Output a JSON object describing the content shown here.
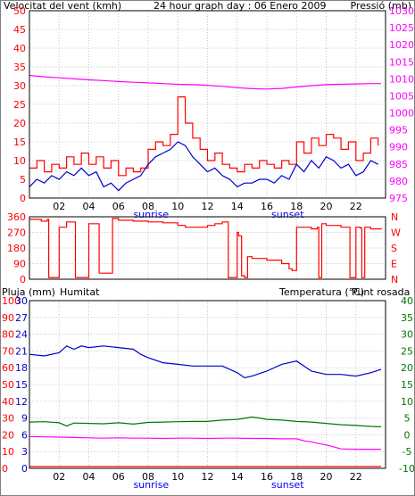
{
  "colors": {
    "background": "#ffffff",
    "frame": "#000000",
    "grid": "#c8c8c8",
    "wind": "#ff0000",
    "pressure": "#ff00ff",
    "direction": "#ff0000",
    "rain": "#ff0000",
    "humidity": "#0000c8",
    "temperature": "#007800",
    "dewpoint": "#ff00ff",
    "daylight": "#0000ff"
  },
  "chart_data": [
    {
      "type": "line",
      "title": "24 hour graph day : 06 Enero 2009",
      "left_axis_label": "Velocitat del vent (kmh)",
      "right_axis_label": "Pressió (mb)",
      "x_ticks": [
        "02",
        "04",
        "06",
        "08",
        "10",
        "12",
        "14",
        "16",
        "18",
        "20",
        "22"
      ],
      "x_tick_hours": [
        2,
        4,
        6,
        8,
        10,
        12,
        14,
        16,
        18,
        20,
        22
      ],
      "x_range": [
        0,
        24
      ],
      "left_ylim": [
        0,
        50
      ],
      "left_ticks": [
        "0",
        "5",
        "10",
        "15",
        "20",
        "25",
        "30",
        "35",
        "40",
        "45",
        "50"
      ],
      "left_tick_values": [
        0,
        5,
        10,
        15,
        20,
        25,
        30,
        35,
        40,
        45,
        50
      ],
      "right_ylim": [
        975,
        1030
      ],
      "right_ticks": [
        "975",
        "980",
        "985",
        "990",
        "995",
        "1000",
        "1005",
        "1010",
        "1015",
        "1020",
        "1025",
        "1030"
      ],
      "right_tick_values": [
        975,
        980,
        985,
        990,
        995,
        1000,
        1005,
        1010,
        1015,
        1020,
        1025,
        1030
      ],
      "sunrise_label": "sunrise",
      "sunset_label": "sunset",
      "sunrise_hour": 8.2,
      "sunset_hour": 17.4,
      "series": [
        {
          "key": "gust",
          "axis": "left",
          "color_key": "wind",
          "x": [
            0,
            0.5,
            1,
            1.5,
            2,
            2.5,
            3,
            3.5,
            4,
            4.5,
            5,
            5.5,
            6,
            6.5,
            7,
            7.5,
            8,
            8.5,
            9,
            9.5,
            10,
            10.5,
            11,
            11.5,
            12,
            12.5,
            13,
            13.5,
            14,
            14.5,
            15,
            15.5,
            16,
            16.5,
            17,
            17.5,
            18,
            18.5,
            19,
            19.5,
            20,
            20.5,
            21,
            21.5,
            22,
            22.5,
            23,
            23.5
          ],
          "y": [
            8,
            10,
            7,
            9,
            8,
            11,
            9,
            12,
            9,
            11,
            8,
            10,
            6,
            8,
            7,
            8,
            13,
            15,
            14,
            17,
            27,
            20,
            16,
            13,
            10,
            12,
            9,
            8,
            7,
            9,
            8,
            10,
            9,
            8,
            10,
            9,
            15,
            12,
            16,
            14,
            17,
            16,
            13,
            15,
            10,
            12,
            16,
            14
          ]
        },
        {
          "key": "wind",
          "axis": "left",
          "color_key": "humidity",
          "x": [
            0,
            0.5,
            1,
            1.5,
            2,
            2.5,
            3,
            3.5,
            4,
            4.5,
            5,
            5.5,
            6,
            6.5,
            7,
            7.5,
            8,
            8.5,
            9,
            9.5,
            10,
            10.5,
            11,
            11.5,
            12,
            12.5,
            13,
            13.5,
            14,
            14.5,
            15,
            15.5,
            16,
            16.5,
            17,
            17.5,
            18,
            18.5,
            19,
            19.5,
            20,
            20.5,
            21,
            21.5,
            22,
            22.5,
            23,
            23.5
          ],
          "y": [
            3,
            5,
            4,
            6,
            5,
            7,
            6,
            8,
            6,
            7,
            3,
            4,
            2,
            4,
            5,
            6,
            9,
            11,
            12,
            13,
            15,
            14,
            11,
            9,
            7,
            8,
            6,
            5,
            3,
            4,
            4,
            5,
            5,
            4,
            6,
            5,
            9,
            7,
            10,
            8,
            11,
            10,
            8,
            9,
            6,
            7,
            10,
            9
          ]
        },
        {
          "key": "pressure",
          "axis": "right",
          "color_key": "pressure",
          "x": [
            0,
            1,
            2,
            3,
            4,
            5,
            6,
            7,
            8,
            9,
            10,
            11,
            12,
            13,
            14,
            15,
            16,
            17,
            18,
            19,
            20,
            21,
            22,
            23,
            23.7
          ],
          "y": [
            1011,
            1010.6,
            1010.3,
            1010,
            1009.7,
            1009.5,
            1009.2,
            1009,
            1008.8,
            1008.6,
            1008.4,
            1008.3,
            1008.1,
            1007.8,
            1007.4,
            1007.1,
            1007.0,
            1007.2,
            1007.6,
            1008.0,
            1008.3,
            1008.4,
            1008.5,
            1008.6,
            1008.6
          ]
        }
      ]
    },
    {
      "type": "line",
      "left_ticks": [
        "0",
        "90",
        "180",
        "270",
        "360"
      ],
      "left_tick_values": [
        0,
        90,
        180,
        270,
        360
      ],
      "right_ticks": [
        "N",
        "E",
        "S",
        "W",
        "N"
      ],
      "ylim": [
        0,
        360
      ],
      "series": [
        {
          "key": "direction",
          "color_key": "direction",
          "x": [
            0,
            0.8,
            1.2,
            1.3,
            1.9,
            2.0,
            2.4,
            2.5,
            3.0,
            3.1,
            3.9,
            4.0,
            4.6,
            4.7,
            5.6,
            6.0,
            7,
            8,
            9,
            10,
            10.5,
            11,
            12,
            12.5,
            13,
            13.2,
            13.4,
            13.5,
            14.0,
            14.1,
            14.3,
            14.5,
            14.7,
            15,
            16,
            17,
            17.5,
            17.7,
            18,
            19,
            19.4,
            19.5,
            19.6,
            19.7,
            20,
            21,
            21.5,
            21.6,
            21.7,
            22,
            22.3,
            22.4,
            22.6,
            23,
            23.7
          ],
          "y": [
            345,
            335,
            345,
            10,
            10,
            300,
            300,
            330,
            330,
            10,
            10,
            320,
            320,
            35,
            350,
            340,
            335,
            330,
            325,
            310,
            300,
            300,
            310,
            320,
            330,
            330,
            10,
            10,
            270,
            250,
            20,
            10,
            130,
            120,
            110,
            90,
            60,
            50,
            300,
            290,
            300,
            10,
            10,
            320,
            310,
            300,
            300,
            10,
            10,
            300,
            295,
            10,
            300,
            290,
            295
          ]
        }
      ]
    },
    {
      "type": "line",
      "legend": [
        "Pluja (mm)",
        "Humitat",
        "Temperatura (°C)",
        "Punt rosada"
      ],
      "rain_ticks": [
        "0",
        "10",
        "20",
        "30",
        "40",
        "50",
        "60",
        "70",
        "80",
        "90",
        "100"
      ],
      "rain_tick_values": [
        0,
        10,
        20,
        30,
        40,
        50,
        60,
        70,
        80,
        90,
        100
      ],
      "humidity_ticks": [
        "0",
        "3",
        "6",
        "9",
        "12",
        "15",
        "18",
        "21",
        "24",
        "27",
        "30"
      ],
      "humidity_tick_values": [
        0,
        3,
        6,
        9,
        12,
        15,
        18,
        21,
        24,
        27,
        30
      ],
      "temp_ylim": [
        -10,
        40
      ],
      "temp_ticks": [
        "-10",
        "-5",
        "0",
        "5",
        "10",
        "15",
        "20",
        "25",
        "30",
        "35",
        "40"
      ],
      "temp_tick_values": [
        -10,
        -5,
        0,
        5,
        10,
        15,
        20,
        25,
        30,
        35,
        40
      ],
      "x_ticks": [
        "02",
        "04",
        "06",
        "08",
        "10",
        "12",
        "14",
        "16",
        "18",
        "20",
        "22"
      ],
      "sunrise_label": "sunrise",
      "sunset_label": "sunset",
      "series": [
        {
          "key": "humidity",
          "axis": "left",
          "color_key": "humidity",
          "x": [
            0,
            1,
            2,
            2.5,
            3,
            3.5,
            4,
            5,
            6,
            7,
            7.5,
            8,
            9,
            10,
            11,
            12,
            13,
            14,
            14.5,
            15,
            16,
            17,
            18,
            19,
            20,
            21,
            22,
            23,
            23.7
          ],
          "y": [
            68,
            67,
            69,
            73,
            71,
            73,
            72,
            73,
            72,
            71,
            68,
            66,
            63,
            62,
            61,
            61,
            61,
            57,
            54,
            55,
            58,
            62,
            64,
            58,
            56,
            56,
            55,
            57,
            59
          ]
        },
        {
          "key": "temperature",
          "axis": "right",
          "color_key": "temperature",
          "x": [
            0,
            1,
            2,
            2.5,
            3,
            4,
            5,
            6,
            7,
            8,
            9,
            10,
            11,
            12,
            13,
            14,
            15,
            15.5,
            16,
            17,
            18,
            19,
            20,
            21,
            22,
            23,
            23.7
          ],
          "y": [
            3.8,
            3.9,
            3.6,
            2.6,
            3.5,
            3.4,
            3.3,
            3.6,
            3.2,
            3.7,
            3.8,
            3.9,
            4.0,
            4.0,
            4.4,
            4.6,
            5.3,
            5.0,
            4.6,
            4.4,
            4.0,
            3.8,
            3.4,
            3.0,
            2.8,
            2.5,
            2.4
          ]
        },
        {
          "key": "dewpoint",
          "axis": "right",
          "color_key": "dewpoint",
          "x": [
            0,
            1,
            2,
            3,
            4,
            5,
            6,
            7,
            8,
            9,
            10,
            11,
            12,
            13,
            14,
            15,
            16,
            17,
            18,
            18.5,
            19,
            19.5,
            20,
            20.5,
            21,
            22,
            23,
            23.7
          ],
          "y": [
            -0.5,
            -0.6,
            -0.7,
            -0.8,
            -0.9,
            -1.0,
            -0.9,
            -1.0,
            -1.0,
            -1.1,
            -1.0,
            -1.0,
            -1.1,
            -1.0,
            -1.0,
            -1.1,
            -1.1,
            -1.2,
            -1.2,
            -1.8,
            -2.1,
            -2.6,
            -3.0,
            -3.6,
            -4.2,
            -4.3,
            -4.3,
            -4.3
          ]
        },
        {
          "key": "rain",
          "axis": "rain",
          "color_key": "rain",
          "x": [
            0,
            23.7
          ],
          "y": [
            0,
            0
          ]
        }
      ]
    }
  ]
}
